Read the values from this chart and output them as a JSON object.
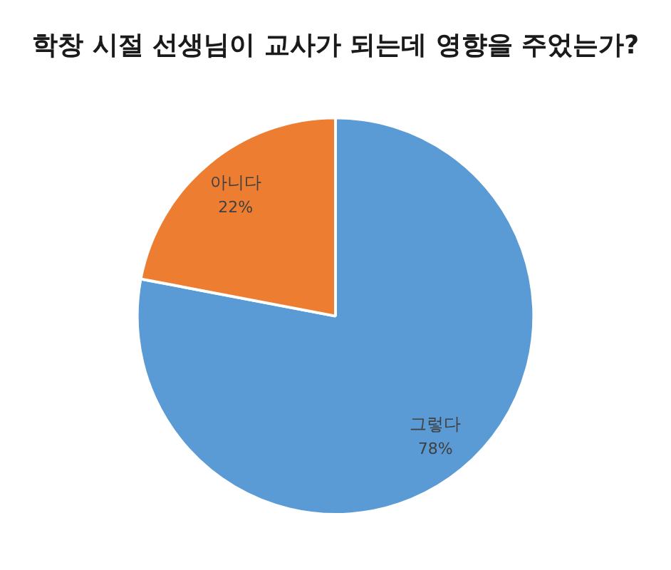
{
  "chart_data": {
    "type": "pie",
    "title": "학창 시절 선생님이 교사가 되는데 영향을 주었는가?",
    "categories": [
      "그렇다",
      "아니다"
    ],
    "values": [
      78,
      22
    ],
    "colors": [
      "#5b9bd5",
      "#ed7d31"
    ],
    "value_labels": [
      "78%",
      "22%"
    ]
  }
}
